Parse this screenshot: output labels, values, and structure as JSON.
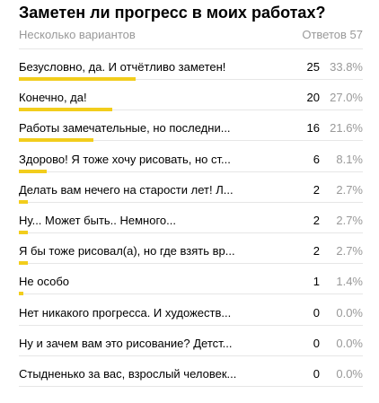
{
  "header": {
    "title": "Заметен ли прогресс в моих работах?",
    "subtitle": "Несколько вариантов",
    "total_label": "Ответов 57"
  },
  "colors": {
    "bar": "#f2cd1c",
    "muted": "#999999",
    "divider": "#e6e6e6"
  },
  "chart_data": {
    "type": "bar",
    "categories": [
      "Безусловно, да. И отчётливо заметен!",
      "Конечно, да!",
      "Работы замечательные, но последни...",
      "Здорово! Я тоже хочу рисовать, но ст...",
      "Делать вам нечего на старости лет! Л...",
      "Ну... Может быть.. Немного...",
      "Я бы тоже рисовал(а), но где взять вр...",
      "Не особо",
      "Нет никакого прогресса. И художеств...",
      "Ну и зачем вам это рисование? Детст...",
      "Стыдненько за вас, взрослый человек..."
    ],
    "values": [
      25,
      20,
      16,
      6,
      2,
      2,
      2,
      1,
      0,
      0,
      0
    ],
    "percents": [
      "33.8%",
      "27.0%",
      "21.6%",
      "8.1%",
      "2.7%",
      "2.7%",
      "2.7%",
      "1.4%",
      "0.0%",
      "0.0%",
      "0.0%"
    ],
    "title": "Заметен ли прогресс в моих работах?",
    "xlabel": "",
    "ylabel": "",
    "grid": false
  }
}
